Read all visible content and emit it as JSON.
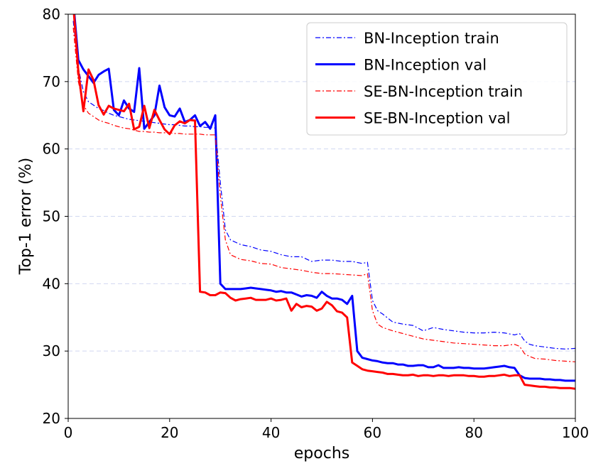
{
  "chart_data": {
    "type": "line",
    "xlabel": "epochs",
    "ylabel": "Top-1 error (%)",
    "xlim": [
      0,
      100
    ],
    "ylim": [
      20,
      80
    ],
    "x_ticks": [
      0,
      20,
      40,
      60,
      80,
      100
    ],
    "y_ticks": [
      20,
      30,
      40,
      50,
      60,
      70,
      80
    ],
    "grid": "horizontal dashed",
    "legend_position": "top-right",
    "series": [
      {
        "name": "BN-Inception train",
        "color": "#0000ff",
        "style": "dashdot-thin",
        "x": [
          1,
          2,
          3,
          4,
          5,
          6,
          7,
          8,
          9,
          10,
          11,
          12,
          13,
          14,
          15,
          16,
          17,
          18,
          19,
          20,
          21,
          22,
          23,
          24,
          25,
          26,
          27,
          28,
          29,
          30,
          31,
          32,
          34,
          36,
          38,
          40,
          42,
          44,
          46,
          48,
          50,
          52,
          54,
          56,
          58,
          59,
          60,
          61,
          62,
          64,
          66,
          68,
          70,
          72,
          74,
          76,
          78,
          80,
          82,
          84,
          86,
          88,
          89,
          90,
          91,
          92,
          94,
          96,
          98,
          100
        ],
        "y": [
          79,
          72,
          68.5,
          67,
          66.5,
          66,
          65.7,
          65.3,
          65,
          64.8,
          64.6,
          64.4,
          64.3,
          64.2,
          64.1,
          64,
          63.9,
          63.8,
          63.7,
          63.6,
          63.6,
          63.5,
          63.4,
          63.4,
          63.3,
          63.3,
          63.2,
          63.2,
          63.1,
          55,
          48,
          46.5,
          45.8,
          45.5,
          45,
          44.8,
          44.3,
          44,
          44,
          43.3,
          43.5,
          43.5,
          43.3,
          43.3,
          43,
          43.2,
          37.5,
          36,
          35.5,
          34.3,
          34,
          33.8,
          33,
          33.5,
          33.2,
          33,
          32.8,
          32.7,
          32.7,
          32.8,
          32.7,
          32.4,
          32.6,
          31.5,
          31,
          30.8,
          30.6,
          30.4,
          30.3,
          30.4
        ]
      },
      {
        "name": "BN-Inception val",
        "color": "#0000ff",
        "style": "solid-thick",
        "x": [
          1,
          2,
          3,
          4,
          5,
          6,
          7,
          8,
          9,
          10,
          11,
          12,
          13,
          14,
          15,
          16,
          17,
          18,
          19,
          20,
          21,
          22,
          23,
          24,
          25,
          26,
          27,
          28,
          29,
          30,
          31,
          32,
          33,
          34,
          35,
          36,
          37,
          38,
          39,
          40,
          41,
          42,
          43,
          44,
          45,
          46,
          47,
          48,
          49,
          50,
          51,
          52,
          53,
          54,
          55,
          56,
          57,
          58,
          59,
          60,
          61,
          62,
          63,
          64,
          65,
          66,
          67,
          68,
          69,
          70,
          71,
          72,
          73,
          74,
          75,
          76,
          77,
          78,
          79,
          80,
          81,
          82,
          83,
          84,
          85,
          86,
          87,
          88,
          89,
          90,
          91,
          92,
          93,
          94,
          95,
          96,
          97,
          98,
          99,
          100
        ],
        "y": [
          82,
          73.2,
          71.8,
          70.8,
          69.8,
          71,
          71.5,
          71.9,
          65.8,
          65,
          67.2,
          66,
          65.5,
          72,
          63,
          64,
          65,
          69.4,
          66.2,
          65,
          64.8,
          66,
          64,
          64.3,
          65,
          63.4,
          64,
          63,
          65,
          40,
          39.2,
          39.2,
          39.2,
          39.2,
          39.3,
          39.4,
          39.3,
          39.2,
          39.1,
          39,
          38.8,
          38.9,
          38.7,
          38.7,
          38.4,
          38.1,
          38.3,
          38.2,
          37.9,
          38.8,
          38.2,
          37.8,
          37.8,
          37.6,
          37,
          38.2,
          30,
          29,
          28.8,
          28.6,
          28.5,
          28.3,
          28.2,
          28.2,
          28,
          28,
          27.8,
          27.8,
          27.9,
          27.9,
          27.6,
          27.6,
          27.9,
          27.5,
          27.5,
          27.5,
          27.6,
          27.5,
          27.5,
          27.4,
          27.4,
          27.4,
          27.5,
          27.6,
          27.7,
          27.8,
          27.6,
          27.5,
          26.4,
          26,
          25.9,
          25.9,
          25.9,
          25.8,
          25.8,
          25.7,
          25.7,
          25.6,
          25.6,
          25.6
        ]
      },
      {
        "name": "SE-BN-Inception train",
        "color": "#ff0000",
        "style": "dashdot-thin",
        "x": [
          1,
          2,
          3,
          4,
          5,
          6,
          7,
          8,
          9,
          10,
          11,
          12,
          13,
          14,
          15,
          16,
          17,
          18,
          19,
          20,
          21,
          22,
          23,
          24,
          25,
          26,
          27,
          28,
          29,
          30,
          31,
          32,
          34,
          36,
          38,
          40,
          42,
          44,
          46,
          48,
          50,
          52,
          54,
          56,
          58,
          59,
          60,
          61,
          62,
          64,
          66,
          68,
          70,
          72,
          74,
          76,
          78,
          80,
          82,
          84,
          86,
          88,
          89,
          90,
          91,
          92,
          94,
          96,
          98,
          100
        ],
        "y": [
          78,
          70,
          66.5,
          65.3,
          64.8,
          64.3,
          64,
          63.8,
          63.5,
          63.3,
          63.1,
          63,
          62.8,
          62.6,
          62.6,
          62.5,
          62.5,
          62.4,
          62.4,
          62.4,
          62.3,
          62.3,
          62.2,
          62.2,
          62.2,
          62.2,
          62.1,
          62.1,
          62.1,
          53,
          46.5,
          44.3,
          43.6,
          43.4,
          43,
          42.9,
          42.4,
          42.2,
          42,
          41.7,
          41.5,
          41.5,
          41.4,
          41.3,
          41.2,
          41.5,
          36,
          34,
          33.5,
          33,
          32.6,
          32.2,
          31.8,
          31.6,
          31.4,
          31.2,
          31.1,
          31,
          30.9,
          30.8,
          30.8,
          31,
          30.7,
          29.6,
          29.2,
          28.9,
          28.8,
          28.6,
          28.5,
          28.4
        ]
      },
      {
        "name": "SE-BN-Inception val",
        "color": "#ff0000",
        "style": "solid-thick",
        "x": [
          1,
          2,
          3,
          4,
          5,
          6,
          7,
          8,
          9,
          10,
          11,
          12,
          13,
          14,
          15,
          16,
          17,
          18,
          19,
          20,
          21,
          22,
          23,
          24,
          25,
          26,
          27,
          28,
          29,
          30,
          31,
          32,
          33,
          34,
          35,
          36,
          37,
          38,
          39,
          40,
          41,
          42,
          43,
          44,
          45,
          46,
          47,
          48,
          49,
          50,
          51,
          52,
          53,
          54,
          55,
          56,
          57,
          58,
          59,
          60,
          61,
          62,
          63,
          64,
          65,
          66,
          67,
          68,
          69,
          70,
          71,
          72,
          73,
          74,
          75,
          76,
          77,
          78,
          79,
          80,
          81,
          82,
          83,
          84,
          85,
          86,
          87,
          88,
          89,
          90,
          91,
          92,
          93,
          94,
          95,
          96,
          97,
          98,
          99,
          100
        ],
        "y": [
          81.5,
          71.5,
          65.6,
          71.8,
          70.2,
          66.5,
          65.1,
          66.4,
          66,
          65.8,
          65.6,
          66.7,
          62.9,
          63.3,
          66.4,
          63.1,
          65.8,
          64.3,
          62.9,
          62.2,
          63.5,
          64.1,
          63.8,
          64.3,
          64.2,
          38.8,
          38.7,
          38.3,
          38.3,
          38.7,
          38.6,
          37.9,
          37.5,
          37.7,
          37.8,
          37.9,
          37.6,
          37.6,
          37.6,
          37.8,
          37.5,
          37.6,
          37.8,
          36,
          37,
          36.5,
          36.7,
          36.6,
          36,
          36.3,
          37.3,
          36.8,
          35.9,
          35.7,
          35,
          28.3,
          27.8,
          27.3,
          27.1,
          27,
          26.9,
          26.8,
          26.6,
          26.6,
          26.5,
          26.4,
          26.4,
          26.5,
          26.3,
          26.4,
          26.4,
          26.3,
          26.4,
          26.4,
          26.3,
          26.4,
          26.4,
          26.4,
          26.3,
          26.3,
          26.2,
          26.2,
          26.3,
          26.3,
          26.4,
          26.5,
          26.3,
          26.4,
          26.4,
          25,
          24.9,
          24.8,
          24.7,
          24.7,
          24.6,
          24.6,
          24.5,
          24.5,
          24.5,
          24.4
        ]
      }
    ]
  }
}
